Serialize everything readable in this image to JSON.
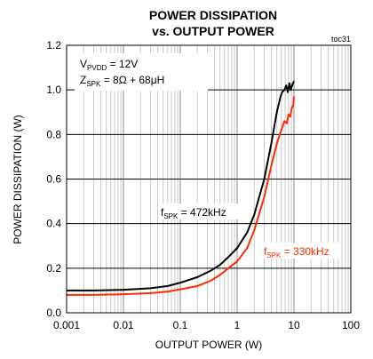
{
  "chart_data": {
    "type": "line",
    "title_line1": "POWER DISSIPATION",
    "title_line2": "vs. OUTPUT POWER",
    "tag": "toc31",
    "xlabel": "OUTPUT POWER (W)",
    "ylabel": "POWER DISSIPATION (W)",
    "x_scale": "log",
    "xlim": [
      0.001,
      100
    ],
    "ylim": [
      0,
      1.2
    ],
    "x_ticks": [
      "0.001",
      "0.01",
      "0.1",
      "1",
      "10",
      "100"
    ],
    "y_ticks": [
      "0.0",
      "0.2",
      "0.4",
      "0.6",
      "0.8",
      "1.0",
      "1.2"
    ],
    "grid": true,
    "conditions": {
      "vpvdd": {
        "main": "V",
        "sub": "PVDD",
        "rest": " = 12V"
      },
      "zspk": {
        "main": "Z",
        "sub": "SPK",
        "rest": " = 8Ω + 68μH"
      }
    },
    "series": [
      {
        "name": "fSPK = 472kHz",
        "label": {
          "main": "f",
          "sub": "SPK",
          "rest": " = 472kHz"
        },
        "color": "#000000",
        "points": [
          [
            0.001,
            0.1
          ],
          [
            0.003,
            0.1
          ],
          [
            0.01,
            0.103
          ],
          [
            0.03,
            0.11
          ],
          [
            0.06,
            0.12
          ],
          [
            0.1,
            0.135
          ],
          [
            0.2,
            0.16
          ],
          [
            0.35,
            0.19
          ],
          [
            0.5,
            0.215
          ],
          [
            0.7,
            0.25
          ],
          [
            1.0,
            0.29
          ],
          [
            1.5,
            0.36
          ],
          [
            2.0,
            0.44
          ],
          [
            3.0,
            0.6
          ],
          [
            4.0,
            0.76
          ],
          [
            5.0,
            0.9
          ],
          [
            5.8,
            0.97
          ],
          [
            6.2,
            0.99
          ],
          [
            6.8,
            1.0
          ],
          [
            7.3,
            1.02
          ],
          [
            7.8,
            0.99
          ],
          [
            8.3,
            1.03
          ],
          [
            8.8,
            1.0
          ],
          [
            9.3,
            1.02
          ],
          [
            10.0,
            1.04
          ]
        ]
      },
      {
        "name": "fSPK = 330kHz",
        "label": {
          "main": "f",
          "sub": "SPK",
          "rest": " = 330kHz"
        },
        "color": "#ff2a00",
        "points": [
          [
            0.001,
            0.08
          ],
          [
            0.003,
            0.08
          ],
          [
            0.01,
            0.083
          ],
          [
            0.03,
            0.088
          ],
          [
            0.06,
            0.095
          ],
          [
            0.1,
            0.105
          ],
          [
            0.2,
            0.12
          ],
          [
            0.35,
            0.145
          ],
          [
            0.5,
            0.17
          ],
          [
            0.7,
            0.2
          ],
          [
            1.0,
            0.23
          ],
          [
            1.5,
            0.29
          ],
          [
            2.0,
            0.37
          ],
          [
            3.0,
            0.52
          ],
          [
            4.0,
            0.66
          ],
          [
            5.0,
            0.76
          ],
          [
            6.0,
            0.82
          ],
          [
            6.8,
            0.86
          ],
          [
            7.5,
            0.85
          ],
          [
            8.0,
            0.89
          ],
          [
            8.6,
            0.88
          ],
          [
            9.2,
            0.92
          ],
          [
            9.7,
            0.93
          ],
          [
            10.0,
            0.97
          ]
        ]
      }
    ]
  }
}
